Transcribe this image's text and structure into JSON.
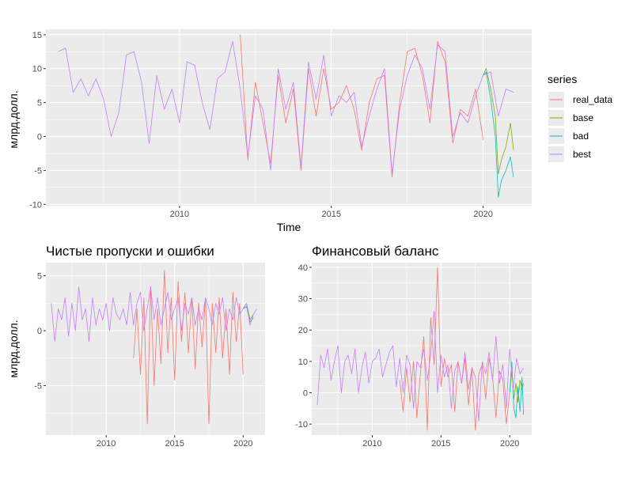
{
  "legend": {
    "title": "series",
    "items": [
      {
        "name": "real_data",
        "color": "#F8766D"
      },
      {
        "name": "base",
        "color": "#7CAE00"
      },
      {
        "name": "bad",
        "color": "#00BFC4"
      },
      {
        "name": "best",
        "color": "#C77CFF"
      }
    ]
  },
  "chart_data": [
    {
      "type": "line",
      "title": "",
      "xlabel": "Time",
      "ylabel": "млрд.долл.",
      "xlim": [
        2005.6,
        2021.6
      ],
      "ylim": [
        -10.2,
        15.8
      ],
      "x_ticks": [
        2010,
        2015,
        2020
      ],
      "y_ticks": [
        -10,
        -5,
        0,
        5,
        10,
        15
      ],
      "grid": true,
      "series": [
        {
          "name": "best",
          "x": [
            2006.0,
            2006.25,
            2006.5,
            2006.75,
            2007.0,
            2007.25,
            2007.5,
            2007.75,
            2008.0,
            2008.25,
            2008.5,
            2008.75,
            2009.0,
            2009.25,
            2009.5,
            2009.75,
            2010.0,
            2010.25,
            2010.5,
            2010.75,
            2011.0,
            2011.25,
            2011.5,
            2011.75,
            2012.0,
            2012.25,
            2012.5,
            2012.75,
            2013.0,
            2013.25,
            2013.5,
            2013.75,
            2014.0,
            2014.25,
            2014.5,
            2014.75,
            2015.0,
            2015.25,
            2015.5,
            2015.75,
            2016.0,
            2016.25,
            2016.5,
            2016.75,
            2017.0,
            2017.25,
            2017.5,
            2017.75,
            2018.0,
            2018.25,
            2018.5,
            2018.75,
            2019.0,
            2019.25,
            2019.5,
            2019.75,
            2020.0,
            2020.25,
            2020.5,
            2020.75,
            2021.0
          ],
          "values": [
            12.5,
            13.0,
            6.5,
            8.5,
            6.0,
            8.5,
            5.5,
            0.0,
            3.5,
            12.0,
            12.5,
            8.0,
            -1.0,
            9.0,
            4.0,
            7.0,
            2.0,
            11.0,
            10.5,
            5.0,
            1.0,
            8.5,
            9.5,
            14.0,
            7.0,
            -3.0,
            6.0,
            4.0,
            -5.0,
            10.0,
            4.0,
            8.0,
            -4.5,
            11.0,
            5.5,
            12.0,
            3.0,
            6.0,
            5.0,
            6.5,
            -1.5,
            3.0,
            7.0,
            10.0,
            -5.5,
            4.0,
            9.0,
            12.0,
            10.0,
            4.0,
            13.5,
            12.5,
            0.0,
            3.5,
            2.0,
            6.0,
            9.0,
            9.5,
            3.0,
            7.0,
            6.5
          ]
        },
        {
          "name": "real_data",
          "x": [
            2012.0,
            2012.25,
            2012.5,
            2012.75,
            2013.0,
            2013.25,
            2013.5,
            2013.75,
            2014.0,
            2014.25,
            2014.5,
            2014.75,
            2015.0,
            2015.25,
            2015.5,
            2015.75,
            2016.0,
            2016.25,
            2016.5,
            2016.75,
            2017.0,
            2017.25,
            2017.5,
            2017.75,
            2018.0,
            2018.25,
            2018.5,
            2018.75,
            2019.0,
            2019.25,
            2019.5,
            2019.75,
            2020.0
          ],
          "values": [
            15.0,
            -3.5,
            8.0,
            2.0,
            -4.0,
            9.0,
            2.0,
            7.0,
            -5.0,
            10.0,
            3.0,
            10.0,
            4.0,
            5.0,
            7.5,
            4.0,
            -2.0,
            5.0,
            8.5,
            9.0,
            -6.0,
            5.0,
            12.5,
            13.0,
            9.0,
            2.0,
            14.0,
            11.0,
            -1.0,
            4.0,
            3.0,
            7.0,
            -0.5
          ]
        },
        {
          "name": "base",
          "x": [
            2020.0,
            2020.1,
            2020.25,
            2020.4,
            2020.5,
            2020.6,
            2020.75,
            2020.9,
            2021.0
          ],
          "values": [
            9.0,
            10.0,
            7.0,
            3.0,
            -5.5,
            -3.5,
            -1.5,
            2.0,
            -2.0
          ]
        },
        {
          "name": "bad",
          "x": [
            2020.0,
            2020.1,
            2020.25,
            2020.4,
            2020.5,
            2020.6,
            2020.75,
            2020.9,
            2021.0
          ],
          "values": [
            9.0,
            9.5,
            5.5,
            0.0,
            -9.0,
            -6.5,
            -5.0,
            -3.0,
            -6.0
          ]
        }
      ]
    },
    {
      "type": "line",
      "title": "Чистые пропуски и ошибки",
      "xlabel": "",
      "ylabel": "млрд.долл.",
      "xlim": [
        2005.6,
        2021.6
      ],
      "ylim": [
        -9.5,
        6.2
      ],
      "x_ticks": [
        2010,
        2015,
        2020
      ],
      "y_ticks": [
        -5,
        0,
        5
      ],
      "grid": true,
      "series": [
        {
          "name": "best",
          "x": [
            2006.0,
            2006.25,
            2006.5,
            2006.75,
            2007.0,
            2007.25,
            2007.5,
            2007.75,
            2008.0,
            2008.25,
            2008.5,
            2008.75,
            2009.0,
            2009.25,
            2009.5,
            2009.75,
            2010.0,
            2010.25,
            2010.5,
            2010.75,
            2011.0,
            2011.25,
            2011.5,
            2011.75,
            2012.0,
            2012.25,
            2012.5,
            2012.75,
            2013.0,
            2013.25,
            2013.5,
            2013.75,
            2014.0,
            2014.25,
            2014.5,
            2014.75,
            2015.0,
            2015.25,
            2015.5,
            2015.75,
            2016.0,
            2016.25,
            2016.5,
            2016.75,
            2017.0,
            2017.25,
            2017.5,
            2017.75,
            2018.0,
            2018.25,
            2018.5,
            2018.75,
            2019.0,
            2019.25,
            2019.5,
            2019.75,
            2020.0,
            2020.25,
            2020.5,
            2020.75,
            2021.0
          ],
          "values": [
            2.5,
            -1.0,
            2.0,
            1.0,
            3.0,
            -0.5,
            2.5,
            0.0,
            4.0,
            1.0,
            2.0,
            -1.0,
            3.0,
            0.5,
            2.0,
            1.0,
            2.5,
            0.0,
            3.0,
            1.5,
            1.0,
            2.0,
            0.5,
            3.5,
            0.5,
            2.5,
            3.5,
            0.0,
            2.0,
            4.0,
            1.0,
            3.0,
            0.5,
            2.0,
            3.5,
            1.0,
            2.0,
            3.0,
            0.0,
            2.5,
            1.5,
            3.0,
            0.5,
            2.0,
            1.0,
            3.0,
            2.0,
            0.5,
            2.5,
            1.5,
            3.0,
            0.0,
            2.0,
            1.0,
            3.0,
            1.5,
            2.0,
            2.5,
            0.5,
            1.5,
            2.0
          ]
        },
        {
          "name": "real_data",
          "x": [
            2012.0,
            2012.25,
            2012.5,
            2012.75,
            2013.0,
            2013.25,
            2013.5,
            2013.75,
            2014.0,
            2014.25,
            2014.5,
            2014.75,
            2015.0,
            2015.25,
            2015.5,
            2015.75,
            2016.0,
            2016.25,
            2016.5,
            2016.75,
            2017.0,
            2017.25,
            2017.5,
            2017.75,
            2018.0,
            2018.25,
            2018.5,
            2018.75,
            2019.0,
            2019.25,
            2019.5,
            2019.75,
            2020.0
          ],
          "values": [
            -2.5,
            2.0,
            -4.0,
            3.0,
            -8.5,
            4.0,
            -5.0,
            2.0,
            -3.0,
            5.5,
            -2.0,
            3.0,
            -4.5,
            4.5,
            -1.0,
            3.5,
            -2.0,
            3.0,
            -3.5,
            2.5,
            -1.5,
            3.0,
            -8.5,
            2.5,
            -2.0,
            3.0,
            -2.5,
            2.0,
            -4.0,
            3.5,
            -1.0,
            2.5,
            -4.0
          ]
        },
        {
          "name": "base",
          "x": [
            2020.0,
            2020.25,
            2020.5,
            2020.75
          ],
          "values": [
            2.0,
            2.5,
            1.0,
            1.5
          ]
        },
        {
          "name": "bad",
          "x": [
            2020.0,
            2020.25,
            2020.5,
            2020.75
          ],
          "values": [
            2.0,
            2.2,
            0.8,
            1.2
          ]
        }
      ]
    },
    {
      "type": "line",
      "title": "Финансовый баланс",
      "xlabel": "",
      "ylabel": "",
      "xlim": [
        2005.6,
        2021.6
      ],
      "ylim": [
        -13.5,
        41.5
      ],
      "x_ticks": [
        2010,
        2015,
        2020
      ],
      "y_ticks": [
        -10,
        0,
        10,
        20,
        30,
        40
      ],
      "grid": true,
      "series": [
        {
          "name": "best",
          "x": [
            2006.0,
            2006.25,
            2006.5,
            2006.75,
            2007.0,
            2007.25,
            2007.5,
            2007.75,
            2008.0,
            2008.25,
            2008.5,
            2008.75,
            2009.0,
            2009.25,
            2009.5,
            2009.75,
            2010.0,
            2010.25,
            2010.5,
            2010.75,
            2011.0,
            2011.25,
            2011.5,
            2011.75,
            2012.0,
            2012.25,
            2012.5,
            2012.75,
            2013.0,
            2013.25,
            2013.5,
            2013.75,
            2014.0,
            2014.25,
            2014.5,
            2014.75,
            2015.0,
            2015.25,
            2015.5,
            2015.75,
            2016.0,
            2016.25,
            2016.5,
            2016.75,
            2017.0,
            2017.25,
            2017.5,
            2017.75,
            2018.0,
            2018.25,
            2018.5,
            2018.75,
            2019.0,
            2019.25,
            2019.5,
            2019.75,
            2020.0,
            2020.25,
            2020.5,
            2020.75,
            2021.0
          ],
          "values": [
            -4.0,
            12.0,
            8.0,
            14.0,
            4.0,
            10.0,
            15.0,
            0.0,
            10.0,
            12.0,
            6.0,
            14.0,
            0.0,
            8.0,
            13.0,
            3.0,
            10.0,
            11.0,
            14.0,
            5.0,
            9.0,
            13.0,
            15.0,
            2.0,
            11.0,
            0.0,
            12.0,
            9.0,
            -5.0,
            10.0,
            8.0,
            14.0,
            4.0,
            12.0,
            26.0,
            0.0,
            12.0,
            5.0,
            9.0,
            -5.0,
            7.0,
            10.0,
            3.0,
            13.0,
            1.0,
            8.0,
            5.0,
            -9.0,
            10.0,
            6.0,
            13.0,
            4.0,
            18.0,
            3.0,
            9.0,
            -5.0,
            14.0,
            1.0,
            11.0,
            6.0,
            8.0
          ]
        },
        {
          "name": "real_data",
          "x": [
            2012.0,
            2012.25,
            2012.5,
            2012.75,
            2013.0,
            2013.25,
            2013.5,
            2013.75,
            2014.0,
            2014.25,
            2014.5,
            2014.75,
            2015.0,
            2015.25,
            2015.5,
            2015.75,
            2016.0,
            2016.25,
            2016.5,
            2016.75,
            2017.0,
            2017.25,
            2017.5,
            2017.75,
            2018.0,
            2018.25,
            2018.5,
            2018.75,
            2019.0,
            2019.25,
            2019.5,
            2019.75,
            2020.0
          ],
          "values": [
            4.0,
            -6.0,
            8.0,
            -3.0,
            10.0,
            -8.0,
            6.0,
            18.0,
            -12.0,
            24.0,
            9.0,
            40.0,
            2.0,
            11.0,
            5.0,
            9.0,
            -6.0,
            10.0,
            3.0,
            11.0,
            -4.0,
            8.0,
            -12.0,
            6.0,
            9.0,
            -2.0,
            11.0,
            5.0,
            -8.0,
            7.0,
            4.0,
            -10.0,
            0.0
          ]
        },
        {
          "name": "base",
          "x": [
            2020.0,
            2020.15,
            2020.3,
            2020.45,
            2020.6,
            2020.75,
            2020.9,
            2021.0
          ],
          "values": [
            0.0,
            7.0,
            -2.0,
            3.0,
            -3.0,
            4.0,
            1.0,
            3.0
          ]
        },
        {
          "name": "bad",
          "x": [
            2020.0,
            2020.15,
            2020.3,
            2020.45,
            2020.6,
            2020.75,
            2020.9,
            2021.0
          ],
          "values": [
            0.0,
            10.0,
            -5.0,
            -8.0,
            2.0,
            -6.0,
            5.0,
            -7.0
          ]
        }
      ]
    }
  ]
}
